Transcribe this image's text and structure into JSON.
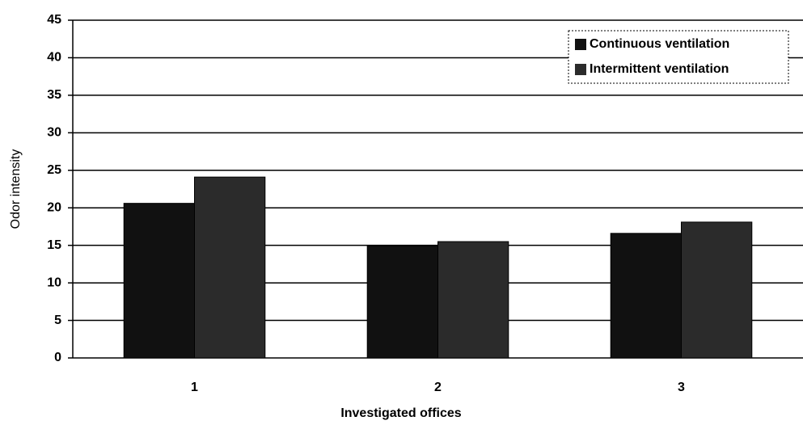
{
  "chart_data": {
    "type": "bar",
    "x_label": "Investigated offices",
    "y_label": "Odor intensity",
    "categories": [
      "1",
      "2",
      "3"
    ],
    "series": [
      {
        "name": "Continuous ventilation",
        "color": "#111111",
        "values": [
          20.6,
          14.9,
          16.6
        ]
      },
      {
        "name": "Intermittent ventilation",
        "color": "#2b2b2b",
        "values": [
          24.1,
          15.5,
          18.1
        ]
      }
    ],
    "ylim": [
      0,
      45
    ],
    "yticks": [
      0,
      5,
      10,
      15,
      20,
      25,
      30,
      35,
      40,
      45
    ],
    "grid": true,
    "legend": "upper right"
  }
}
